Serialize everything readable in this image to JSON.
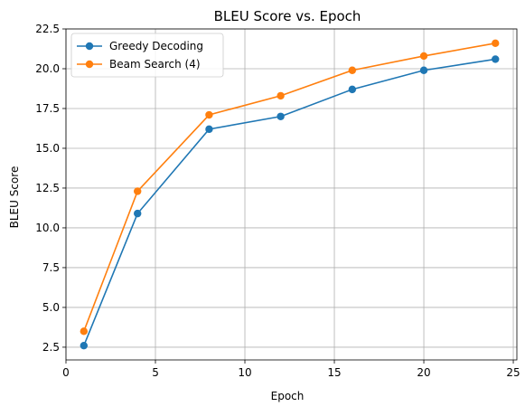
{
  "chart_data": {
    "type": "line",
    "title": "BLEU Score vs. Epoch",
    "xlabel": "Epoch",
    "ylabel": "BLEU Score",
    "xlim": [
      0.0,
      25.2
    ],
    "ylim": [
      1.7,
      22.5
    ],
    "xticks": [
      0,
      5,
      10,
      15,
      20,
      25
    ],
    "xtick_labels": [
      "0",
      "5",
      "10",
      "15",
      "20",
      "25"
    ],
    "yticks": [
      2.5,
      5.0,
      7.5,
      10.0,
      12.5,
      15.0,
      17.5,
      20.0,
      22.5
    ],
    "ytick_labels": [
      "2.5",
      "5.0",
      "7.5",
      "10.0",
      "12.5",
      "15.0",
      "17.5",
      "20.0",
      "22.5"
    ],
    "grid": true,
    "legend_position": "top-left",
    "x": [
      1,
      4,
      8,
      12,
      16,
      20,
      24
    ],
    "series": [
      {
        "name": "Greedy Decoding",
        "color": "#1f77b4",
        "values": [
          2.6,
          10.9,
          16.2,
          17.0,
          18.7,
          19.9,
          20.6
        ]
      },
      {
        "name": "Beam Search (4)",
        "color": "#ff7f0e",
        "values": [
          3.5,
          12.3,
          17.1,
          18.3,
          19.9,
          20.8,
          21.6
        ]
      }
    ]
  }
}
